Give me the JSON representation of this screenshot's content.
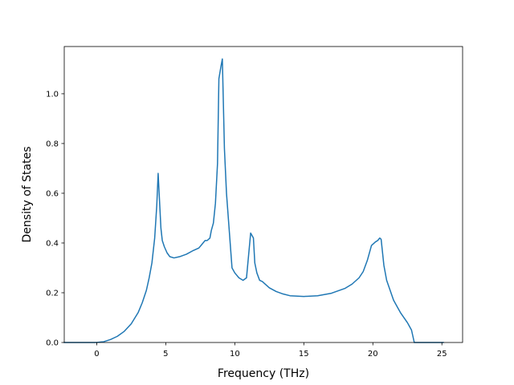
{
  "chart_data": {
    "type": "line",
    "title": "",
    "xlabel": "Frequency (THz)",
    "ylabel": "Density of States",
    "xlim": [
      -2.35,
      26.5
    ],
    "ylim": [
      0.0,
      1.19
    ],
    "x_ticks": [
      0,
      5,
      10,
      15,
      20,
      25
    ],
    "y_ticks": [
      0.0,
      0.2,
      0.4,
      0.6,
      0.8,
      1.0
    ],
    "x_tick_labels": [
      "0",
      "5",
      "10",
      "15",
      "20",
      "25"
    ],
    "y_tick_labels": [
      "0.0",
      "0.2",
      "0.4",
      "0.6",
      "0.8",
      "1.0"
    ],
    "grid": false,
    "legend": "none",
    "series": [
      {
        "color": "#1f77b4",
        "x": [
          -2.35,
          -1.0,
          0.0,
          0.5,
          1.0,
          1.5,
          2.0,
          2.5,
          3.0,
          3.3,
          3.6,
          3.8,
          4.0,
          4.2,
          4.35,
          4.45,
          4.55,
          4.65,
          4.75,
          4.9,
          5.1,
          5.3,
          5.6,
          6.0,
          6.5,
          7.0,
          7.4,
          7.7,
          7.85,
          8.0,
          8.2,
          8.3,
          8.45,
          8.6,
          8.75,
          8.85,
          9.0,
          9.1,
          9.25,
          9.4,
          9.6,
          9.8,
          10.0,
          10.3,
          10.6,
          10.85,
          11.0,
          11.15,
          11.35,
          11.45,
          11.6,
          11.8,
          12.0,
          12.5,
          13.0,
          13.5,
          14.0,
          15.0,
          16.0,
          17.0,
          18.0,
          18.5,
          19.0,
          19.3,
          19.6,
          19.9,
          20.2,
          20.35,
          20.5,
          20.6,
          20.8,
          21.0,
          21.5,
          22.0,
          22.5,
          22.8,
          23.0,
          25.1
        ],
        "y": [
          0.0,
          0.0,
          0.0,
          0.003,
          0.012,
          0.025,
          0.045,
          0.075,
          0.12,
          0.16,
          0.21,
          0.26,
          0.32,
          0.42,
          0.55,
          0.68,
          0.57,
          0.46,
          0.41,
          0.385,
          0.36,
          0.345,
          0.34,
          0.345,
          0.355,
          0.37,
          0.38,
          0.4,
          0.41,
          0.41,
          0.42,
          0.45,
          0.48,
          0.56,
          0.72,
          1.06,
          1.11,
          1.14,
          0.78,
          0.6,
          0.45,
          0.3,
          0.28,
          0.26,
          0.25,
          0.26,
          0.35,
          0.44,
          0.42,
          0.32,
          0.28,
          0.25,
          0.245,
          0.22,
          0.205,
          0.195,
          0.188,
          0.185,
          0.188,
          0.198,
          0.218,
          0.235,
          0.26,
          0.285,
          0.33,
          0.39,
          0.405,
          0.41,
          0.42,
          0.415,
          0.31,
          0.25,
          0.17,
          0.12,
          0.08,
          0.05,
          0.0,
          0.0
        ]
      }
    ]
  }
}
